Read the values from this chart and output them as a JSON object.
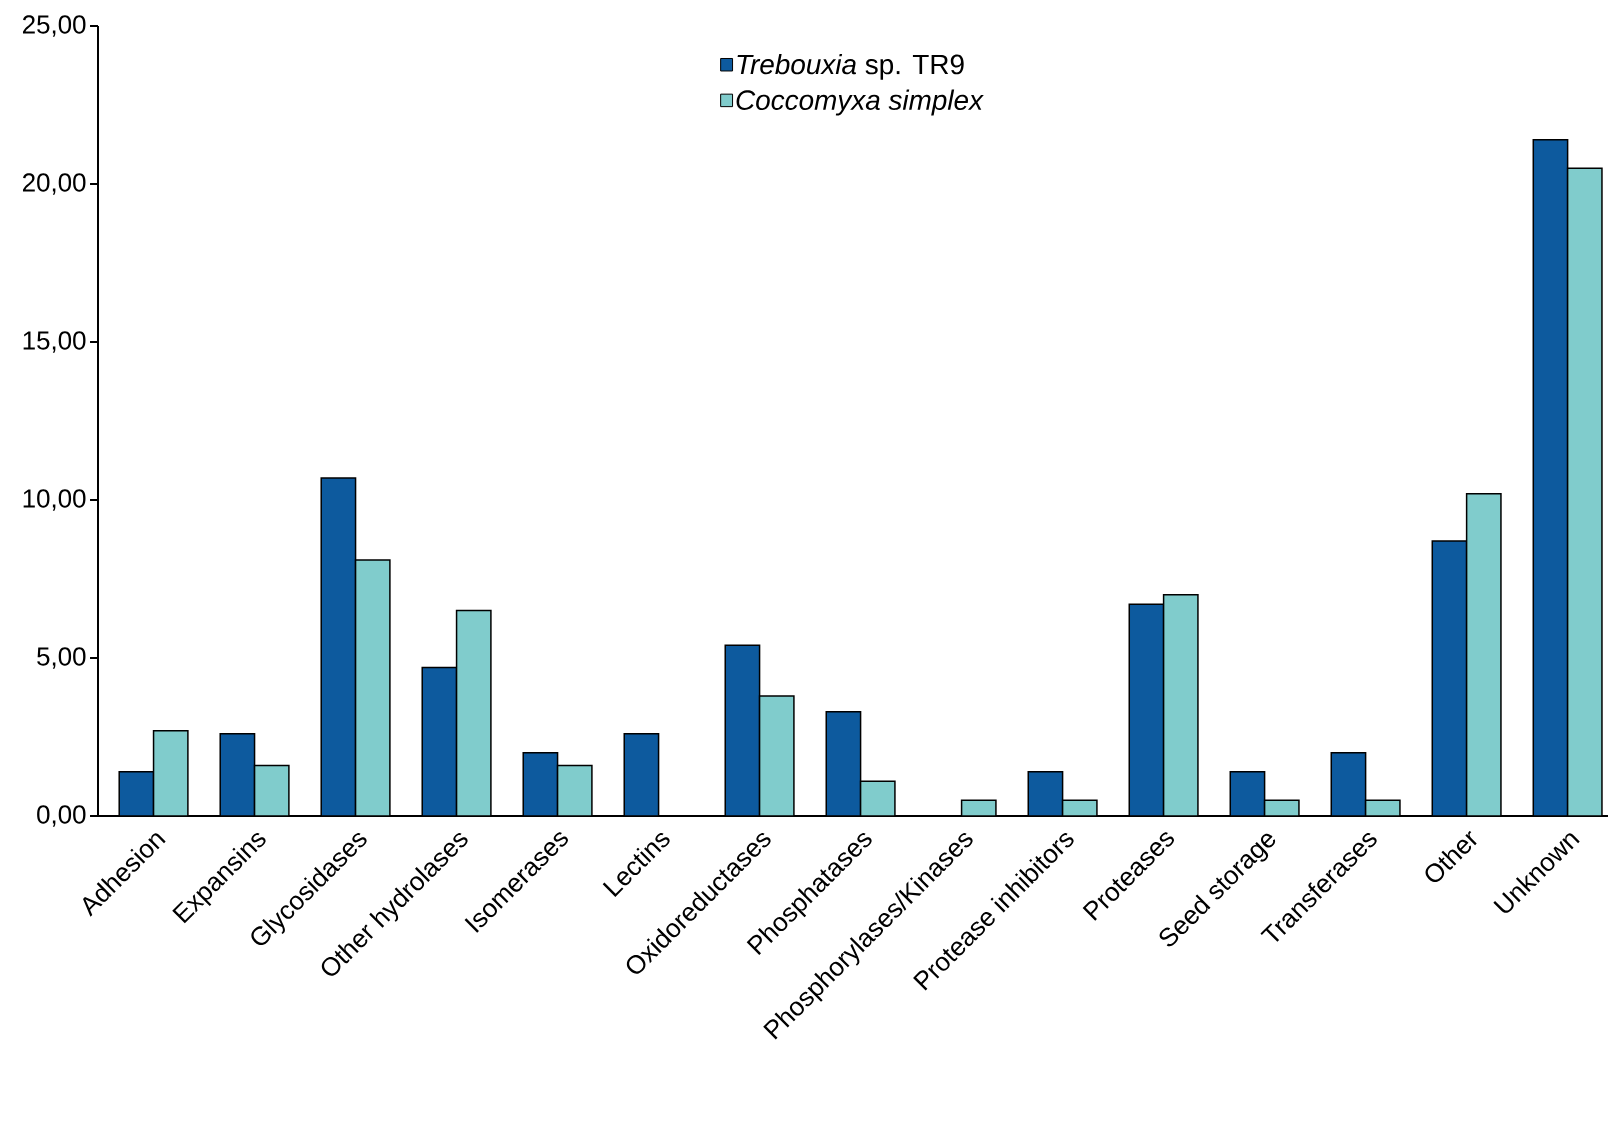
{
  "chart_data": {
    "type": "bar",
    "categories": [
      "Adhesion",
      "Expansins",
      "Glycosidases",
      "Other hydrolases",
      "Isomerases",
      "Lectins",
      "Oxidoreductases",
      "Phosphatases",
      "Phosphorylases/Kinases",
      "Protease inhibitors",
      "Proteases",
      "Seed storage",
      "Transferases",
      "Other",
      "Unknown"
    ],
    "series": [
      {
        "name": "*Trebouxia* sp. TR9",
        "color": "#0d5a9e",
        "values": [
          1.4,
          2.6,
          10.7,
          4.7,
          2.0,
          2.6,
          5.4,
          3.3,
          null,
          1.4,
          6.7,
          1.4,
          2.0,
          8.7,
          21.4
        ]
      },
      {
        "name": "*Coccomyxa simplex*",
        "color": "#80cccc",
        "values": [
          2.7,
          1.6,
          8.1,
          6.5,
          1.6,
          null,
          3.8,
          1.1,
          0.5,
          0.5,
          7.0,
          0.5,
          0.5,
          10.2,
          20.5
        ]
      }
    ],
    "ylim": [
      0,
      25
    ],
    "yticks": [
      {
        "value": 0,
        "label": "0,00"
      },
      {
        "value": 5,
        "label": "5,00"
      },
      {
        "value": 10,
        "label": "10,00"
      },
      {
        "value": 15,
        "label": "15,00"
      },
      {
        "value": 20,
        "label": "20,00"
      },
      {
        "value": 25,
        "label": "25,00"
      }
    ],
    "grid": false,
    "legend": "top"
  }
}
